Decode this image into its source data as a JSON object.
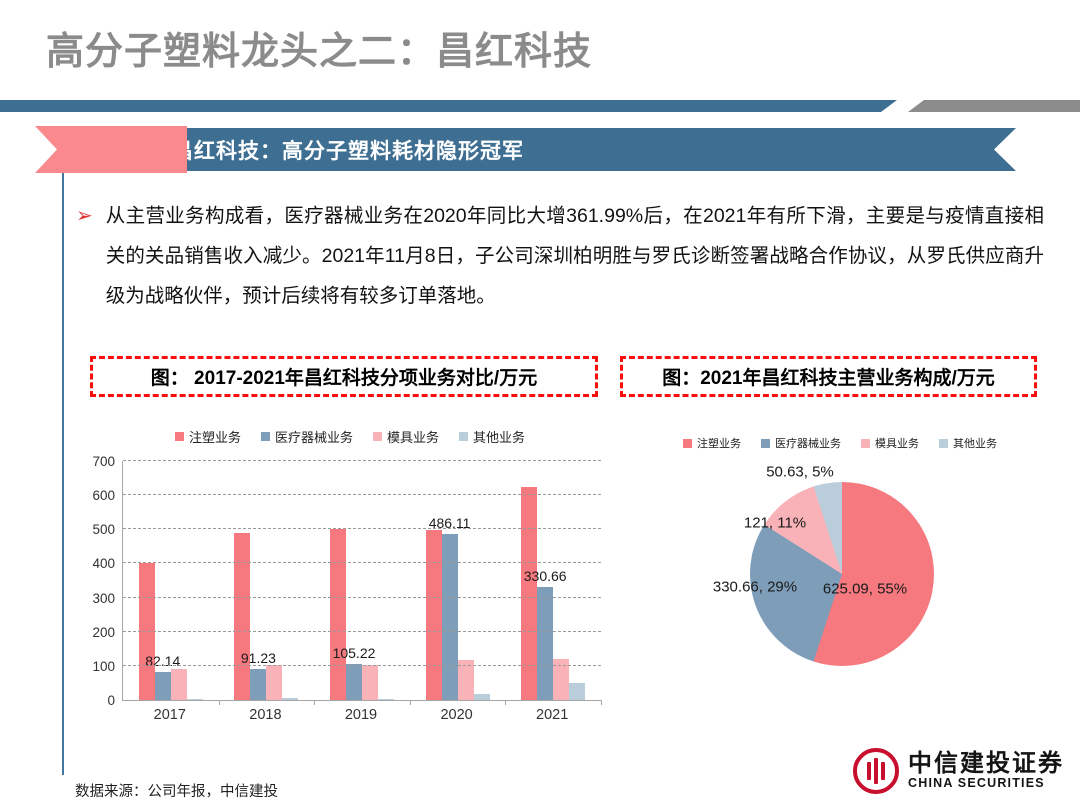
{
  "header": {
    "title": "高分子塑料龙头之二：昌红科技"
  },
  "banner": {
    "label": "昌红科技：高分子塑料耗材隐形冠军"
  },
  "paragraph": {
    "bullet": "➢",
    "text": "从主营业务构成看，医疗器械业务在2020年同比大增361.99%后，在2021年有所下滑，主要是与疫情直接相关的关品销售收入减少。2021年11月8日，子公司深圳柏明胜与罗氏诊断签署战略合作协议，从罗氏供应商升级为战略伙伴，预计后续将有较多订单落地。"
  },
  "figure_titles": {
    "left": "图： 2017-2021年昌红科技分项业务对比/万元",
    "right": "图：2021年昌红科技主营业务构成/万元"
  },
  "chart_data": [
    {
      "type": "bar",
      "title": "2017-2021年昌红科技分项业务对比/万元",
      "categories": [
        "2017",
        "2018",
        "2019",
        "2020",
        "2021"
      ],
      "series": [
        {
          "name": "注塑业务",
          "color": "#f5797f",
          "values": [
            400,
            490,
            502,
            497,
            625.09
          ]
        },
        {
          "name": "医疗器械业务",
          "color": "#7d9db9",
          "values": [
            82.14,
            91.23,
            105.22,
            486.11,
            330.66
          ]
        },
        {
          "name": "模具业务",
          "color": "#f9b3b8",
          "values": [
            91,
            102,
            102,
            117,
            121
          ]
        },
        {
          "name": "其他业务",
          "color": "#b9cdda",
          "values": [
            4,
            7,
            4,
            17,
            50.63
          ]
        }
      ],
      "data_labels": {
        "series_index": 1,
        "values": [
          "82.14",
          "91.23",
          "105.22",
          "486.11",
          "330.66"
        ]
      },
      "ylim": [
        0,
        700
      ],
      "yticks": [
        0,
        100,
        200,
        300,
        400,
        500,
        600,
        700
      ],
      "grid": "horizontal-dashed",
      "legend_position": "top"
    },
    {
      "type": "pie",
      "title": "2021年昌红科技主营业务构成/万元",
      "slices": [
        {
          "name": "注塑业务",
          "value": 625.09,
          "pct": 55,
          "label": "625.09, 55%",
          "color": "#f5797f"
        },
        {
          "name": "医疗器械业务",
          "value": 330.66,
          "pct": 29,
          "label": "330.66, 29%",
          "color": "#7d9db9"
        },
        {
          "name": "模具业务",
          "value": 121,
          "pct": 11,
          "label": "121, 11%",
          "color": "#f9b3b8"
        },
        {
          "name": "其他业务",
          "value": 50.63,
          "pct": 5,
          "label": "50.63, 5%",
          "color": "#b9cdda"
        }
      ],
      "start": "12-o'clock, clockwise",
      "legend_position": "top",
      "label_pos": [
        [
          225,
          159
        ],
        [
          115,
          157
        ],
        [
          135,
          93
        ],
        [
          160,
          42
        ]
      ]
    }
  ],
  "footer": {
    "source": "数据来源：公司年报，中信建投"
  },
  "logo": {
    "name_cn": "中信建投证券",
    "name_en": "CHINA SECURITIES"
  },
  "colors": {
    "title_gray": "#8b8b8b",
    "ribbon_blue": "#3e6f93",
    "flag_pink": "#f9898d",
    "divider_gray": "#8c8c8c",
    "dashed_red": "#fb0d0d",
    "bullet_red": "#e03030",
    "logo_red": "#c8102e"
  }
}
